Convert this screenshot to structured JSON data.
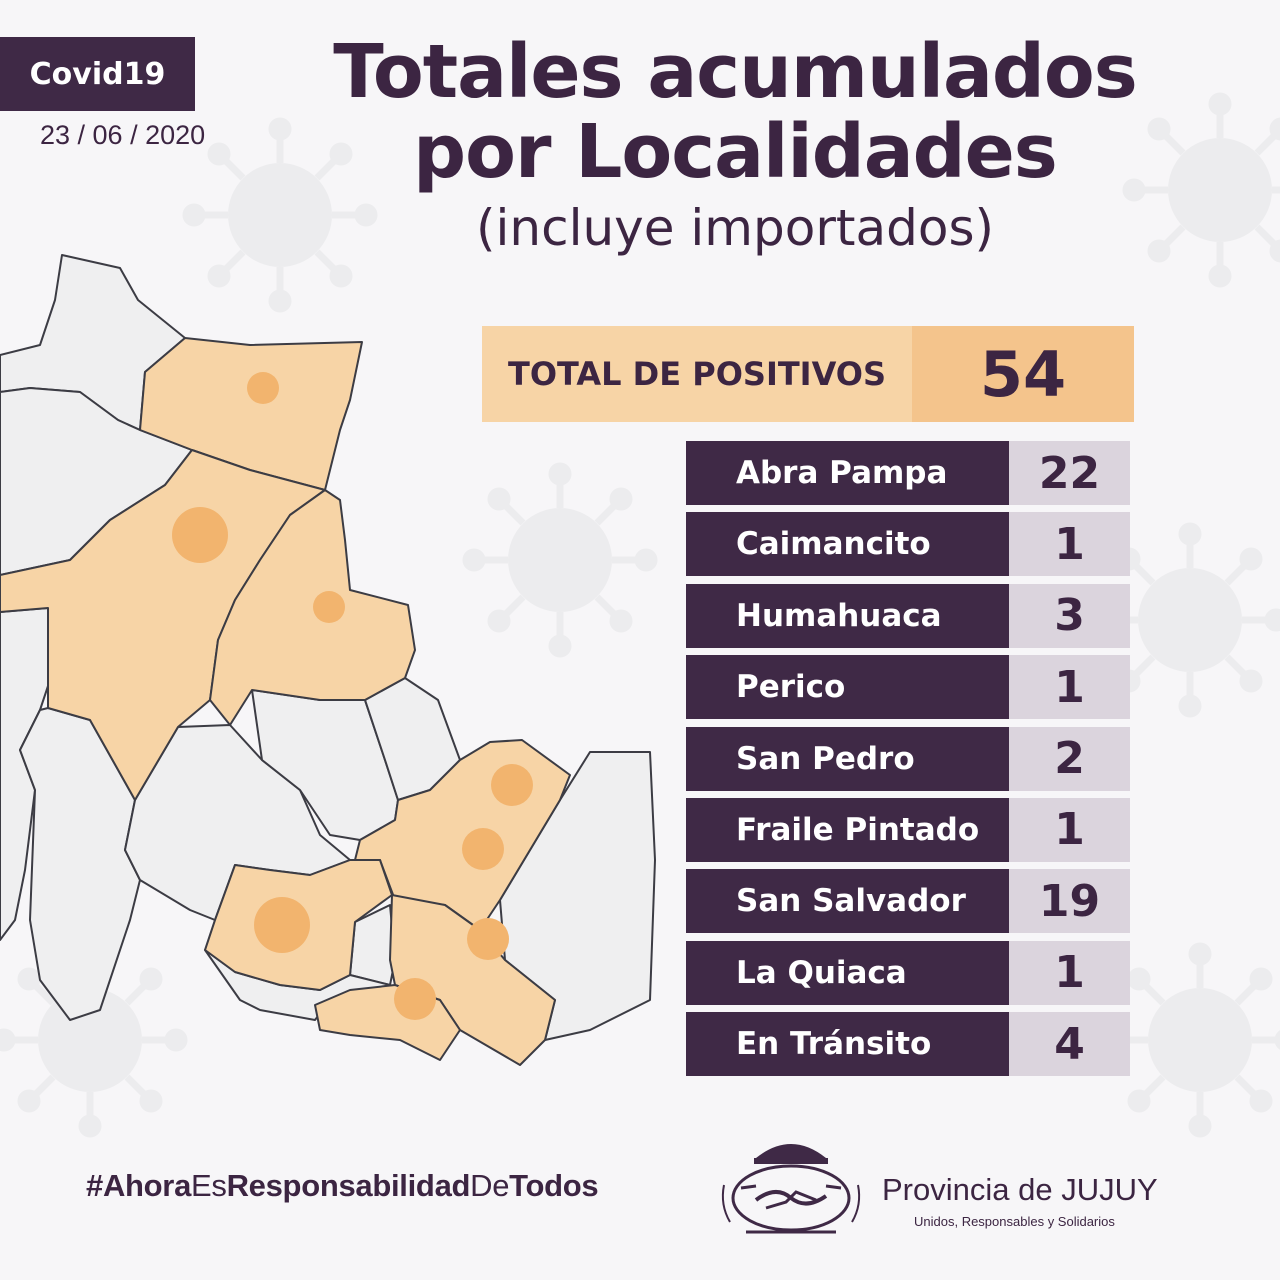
{
  "header": {
    "tag": "Covid19",
    "date": "23 / 06 / 2020",
    "title_line1": "Totales acumulados",
    "title_line2": "por Localidades",
    "subtitle": "(incluye importados)"
  },
  "total": {
    "label": "TOTAL DE POSITIVOS",
    "value": "54"
  },
  "localities": [
    {
      "name": "Abra Pampa",
      "value": "22"
    },
    {
      "name": "Caimancito",
      "value": "1"
    },
    {
      "name": "Humahuaca",
      "value": "3"
    },
    {
      "name": "Perico",
      "value": "1"
    },
    {
      "name": "San Pedro",
      "value": "2"
    },
    {
      "name": "Fraile Pintado",
      "value": "1"
    },
    {
      "name": "San Salvador",
      "value": "19"
    },
    {
      "name": "La Quiaca",
      "value": "1"
    },
    {
      "name": "En Tránsito",
      "value": "4"
    }
  ],
  "footer": {
    "hashtag_parts": [
      "#Ahora",
      "Es",
      "Responsabilidad",
      "De",
      "Todos"
    ],
    "province": "Provincia de JUJUY",
    "motto": "Unidos, Responsables y Solidarios"
  },
  "colors": {
    "purple": "#3f2946",
    "highlight_region": "#f7d4a6",
    "case_dot": "#f2b46e",
    "plain_region": "#efeff0"
  }
}
